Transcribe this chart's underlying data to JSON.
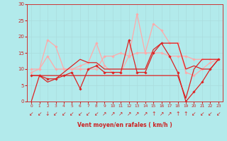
{
  "xlabel": "Vent moyen/en rafales ( km/h )",
  "xlim": [
    -0.5,
    23.5
  ],
  "ylim": [
    0,
    30
  ],
  "xticks": [
    0,
    1,
    2,
    3,
    4,
    5,
    6,
    7,
    8,
    9,
    10,
    11,
    12,
    13,
    14,
    15,
    16,
    17,
    18,
    19,
    20,
    21,
    22,
    23
  ],
  "yticks": [
    0,
    5,
    10,
    15,
    20,
    25,
    30
  ],
  "background_color": "#b2eaeb",
  "grid_color": "#c8e8e8",
  "lines": [
    {
      "x": [
        0,
        1,
        2,
        3,
        4,
        5,
        6,
        7,
        8,
        9,
        10,
        11,
        12,
        13,
        14,
        15,
        16,
        17,
        18,
        19,
        20,
        21,
        22,
        23
      ],
      "y": [
        9,
        10,
        19,
        17,
        10,
        10,
        11,
        12,
        18,
        11,
        9,
        9,
        14,
        27,
        15,
        24,
        22,
        18,
        18,
        9,
        8,
        10,
        12,
        13
      ],
      "color": "#ffaaaa",
      "lw": 0.9,
      "marker": "D",
      "ms": 1.8,
      "zorder": 2
    },
    {
      "x": [
        0,
        1,
        2,
        3,
        4,
        5,
        6,
        7,
        8,
        9,
        10,
        11,
        12,
        13,
        14,
        15,
        16,
        17,
        18,
        19,
        20,
        21,
        22,
        23
      ],
      "y": [
        10,
        10,
        14,
        10,
        10,
        10,
        10,
        10,
        10,
        14,
        14,
        15,
        14,
        15,
        15,
        15,
        15,
        14,
        14,
        14,
        13,
        13,
        13,
        13
      ],
      "color": "#ffaaaa",
      "lw": 0.9,
      "marker": "D",
      "ms": 1.8,
      "zorder": 2
    },
    {
      "x": [
        0,
        1,
        2,
        3,
        4,
        5,
        6,
        7,
        8,
        9,
        10,
        11,
        12,
        13,
        14,
        15,
        16,
        17,
        18,
        19,
        20,
        21,
        22,
        23
      ],
      "y": [
        8,
        8,
        6,
        7,
        9,
        11,
        13,
        12,
        12,
        10,
        10,
        10,
        10,
        10,
        10,
        16,
        18,
        18,
        18,
        10,
        11,
        10,
        10,
        13
      ],
      "color": "#dd2222",
      "lw": 0.9,
      "marker": null,
      "ms": 0,
      "zorder": 3
    },
    {
      "x": [
        0,
        1,
        2,
        3,
        4,
        5,
        6,
        7,
        8,
        9,
        10,
        11,
        12,
        13,
        14,
        15,
        16,
        17,
        18,
        19,
        20,
        21,
        22,
        23
      ],
      "y": [
        8,
        8,
        7,
        7,
        8,
        9,
        4,
        10,
        11,
        9,
        9,
        9,
        19,
        9,
        9,
        15,
        18,
        14,
        9,
        0,
        3,
        6,
        10,
        13
      ],
      "color": "#dd2222",
      "lw": 0.9,
      "marker": "D",
      "ms": 1.8,
      "zorder": 3
    },
    {
      "x": [
        0,
        1,
        2,
        3,
        4,
        5,
        6,
        7,
        8,
        9,
        10,
        11,
        12,
        13,
        14,
        15,
        16,
        17,
        18,
        19,
        20,
        21,
        22,
        23
      ],
      "y": [
        0,
        8,
        8,
        8,
        8,
        8,
        8,
        8,
        8,
        8,
        8,
        8,
        8,
        8,
        8,
        8,
        8,
        8,
        8,
        1,
        10,
        13,
        13,
        13
      ],
      "color": "#dd2222",
      "lw": 0.9,
      "marker": null,
      "ms": 0,
      "zorder": 3
    }
  ],
  "arrows": [
    "↙",
    "↙",
    "↓",
    "↙",
    "↙",
    "↙",
    "↙",
    "↙",
    "↙",
    "↗",
    "↗",
    "↗",
    "↗",
    "↗",
    "↗",
    "↑",
    "↗",
    "↗",
    "↑",
    "↑",
    "↙",
    "↙",
    "↙",
    "↙"
  ],
  "arrow_fontsize": 5.5
}
